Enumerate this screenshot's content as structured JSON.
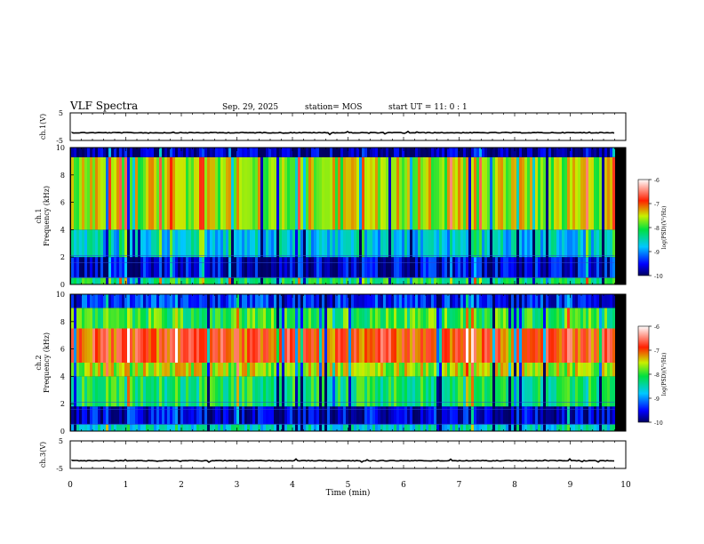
{
  "header": {
    "title": "VLF Spectra",
    "date": "Sep. 29, 2025",
    "station": "station= MOS",
    "start": "start  UT  =   11: 0  : 1"
  },
  "chart_data": [
    {
      "type": "line",
      "name": "ch1-waveform",
      "ylabel": "ch.1(V)",
      "ylim": [
        -5,
        5
      ],
      "yticks": [
        "5",
        "-5"
      ],
      "xlim": [
        0,
        10
      ],
      "baseline": -2.2
    },
    {
      "type": "heatmap",
      "name": "ch1-spectrogram",
      "ylabel": "Frequency (kHz)",
      "channel": "ch.1",
      "ylim": [
        0,
        10
      ],
      "yticks": [
        "0",
        "2",
        "4",
        "6",
        "8",
        "10"
      ],
      "xlim": [
        0,
        9.8
      ],
      "colorbar": {
        "label": "log(PSD)(V²/Hz)",
        "ticks": [
          "-6",
          "-7",
          "-8",
          "-9",
          "-10"
        ],
        "range": [
          -10,
          -6
        ]
      },
      "bands": [
        {
          "from": 0,
          "to": 0.5,
          "level": -8.2
        },
        {
          "from": 0.5,
          "to": 2.0,
          "level": -9.6
        },
        {
          "from": 2.0,
          "to": 4.0,
          "level": -8.7
        },
        {
          "from": 4.0,
          "to": 9.3,
          "level": -7.6
        },
        {
          "from": 9.3,
          "to": 10,
          "level": -9.8
        }
      ]
    },
    {
      "type": "heatmap",
      "name": "ch2-spectrogram",
      "ylabel": "Frequency (kHz)",
      "channel": "ch.2",
      "ylim": [
        0,
        10
      ],
      "yticks": [
        "0",
        "2",
        "4",
        "6",
        "8",
        "10"
      ],
      "xlim": [
        0,
        9.8
      ],
      "colorbar": {
        "label": "log(PSD)(V²/Hz)",
        "ticks": [
          "-6",
          "-7",
          "-8",
          "-9",
          "-10"
        ],
        "range": [
          -10,
          -6
        ]
      },
      "bands": [
        {
          "from": 0,
          "to": 0.5,
          "level": -8.6
        },
        {
          "from": 0.5,
          "to": 1.8,
          "level": -9.6
        },
        {
          "from": 1.8,
          "to": 4.0,
          "level": -8.2
        },
        {
          "from": 4.0,
          "to": 5.0,
          "level": -7.6
        },
        {
          "from": 5.0,
          "to": 7.5,
          "level": -6.9
        },
        {
          "from": 7.5,
          "to": 9.0,
          "level": -8.0
        },
        {
          "from": 9.0,
          "to": 10,
          "level": -9.4
        }
      ]
    },
    {
      "type": "line",
      "name": "ch3-waveform",
      "ylabel": "ch.3(V)",
      "ylim": [
        -5,
        5
      ],
      "yticks": [
        "5",
        "-5"
      ],
      "xlim": [
        0,
        10
      ],
      "baseline": -2.2
    }
  ],
  "xaxis": {
    "label": "Time (min)",
    "ticks": [
      "0",
      "1",
      "2",
      "3",
      "4",
      "5",
      "6",
      "7",
      "8",
      "9",
      "10"
    ]
  }
}
